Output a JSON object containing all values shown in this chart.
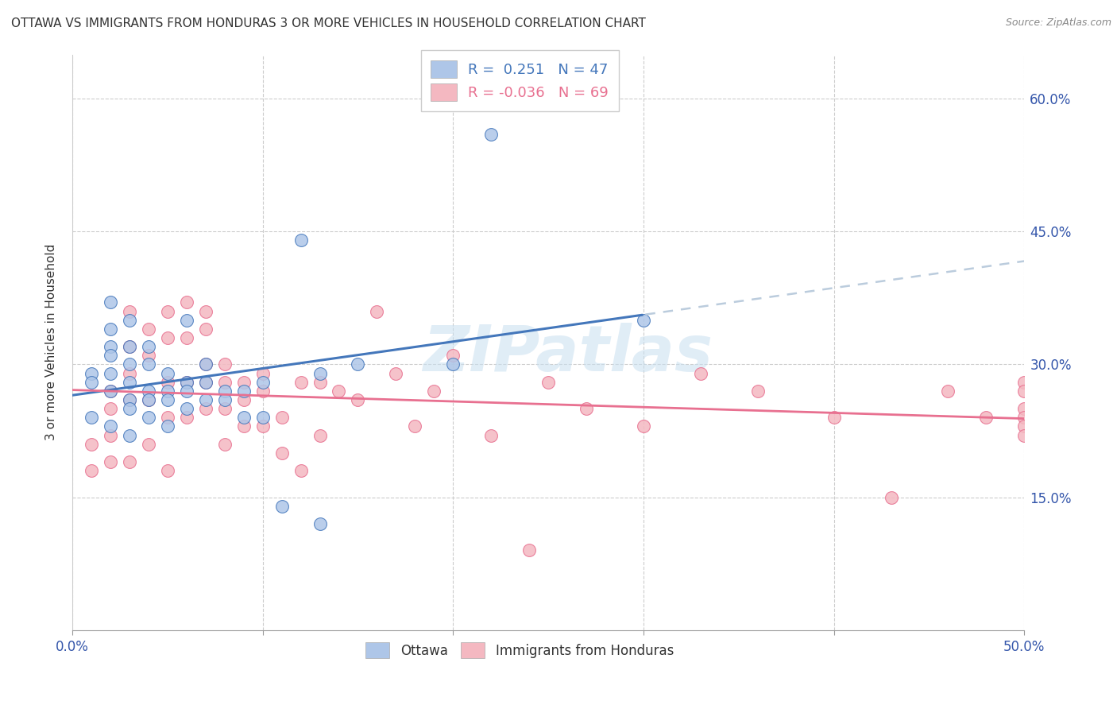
{
  "title": "OTTAWA VS IMMIGRANTS FROM HONDURAS 3 OR MORE VEHICLES IN HOUSEHOLD CORRELATION CHART",
  "source": "Source: ZipAtlas.com",
  "ylabel": "3 or more Vehicles in Household",
  "y_ticks": [
    "15.0%",
    "30.0%",
    "45.0%",
    "60.0%"
  ],
  "y_tick_vals": [
    0.15,
    0.3,
    0.45,
    0.6
  ],
  "x_lim": [
    0.0,
    0.5
  ],
  "y_lim": [
    0.0,
    0.65
  ],
  "ottawa_color": "#aec6e8",
  "honduras_color": "#f4b8c1",
  "ottawa_line_color": "#4477bb",
  "honduras_line_color": "#e87090",
  "trendline_extend_color": "#bbccdd",
  "watermark_text": "ZIPatlas",
  "ottawa_R": 0.251,
  "ottawa_N": 47,
  "honduras_R": -0.036,
  "honduras_N": 69,
  "ottawa_scatter_x": [
    0.01,
    0.01,
    0.01,
    0.02,
    0.02,
    0.02,
    0.02,
    0.02,
    0.02,
    0.02,
    0.03,
    0.03,
    0.03,
    0.03,
    0.03,
    0.03,
    0.03,
    0.04,
    0.04,
    0.04,
    0.04,
    0.04,
    0.05,
    0.05,
    0.05,
    0.05,
    0.06,
    0.06,
    0.06,
    0.06,
    0.07,
    0.07,
    0.07,
    0.08,
    0.08,
    0.09,
    0.09,
    0.1,
    0.1,
    0.11,
    0.12,
    0.13,
    0.13,
    0.15,
    0.2,
    0.22,
    0.3
  ],
  "ottawa_scatter_y": [
    0.29,
    0.28,
    0.24,
    0.37,
    0.34,
    0.32,
    0.31,
    0.29,
    0.27,
    0.23,
    0.35,
    0.32,
    0.3,
    0.28,
    0.26,
    0.25,
    0.22,
    0.32,
    0.3,
    0.27,
    0.26,
    0.24,
    0.29,
    0.27,
    0.26,
    0.23,
    0.35,
    0.28,
    0.27,
    0.25,
    0.3,
    0.28,
    0.26,
    0.27,
    0.26,
    0.27,
    0.24,
    0.28,
    0.24,
    0.14,
    0.44,
    0.29,
    0.12,
    0.3,
    0.3,
    0.56,
    0.35
  ],
  "honduras_scatter_x": [
    0.01,
    0.01,
    0.02,
    0.02,
    0.02,
    0.02,
    0.03,
    0.03,
    0.03,
    0.03,
    0.03,
    0.04,
    0.04,
    0.04,
    0.04,
    0.05,
    0.05,
    0.05,
    0.05,
    0.05,
    0.06,
    0.06,
    0.06,
    0.06,
    0.07,
    0.07,
    0.07,
    0.07,
    0.07,
    0.08,
    0.08,
    0.08,
    0.08,
    0.09,
    0.09,
    0.09,
    0.1,
    0.1,
    0.1,
    0.11,
    0.11,
    0.12,
    0.12,
    0.13,
    0.13,
    0.14,
    0.15,
    0.16,
    0.17,
    0.18,
    0.19,
    0.2,
    0.22,
    0.24,
    0.25,
    0.27,
    0.3,
    0.33,
    0.36,
    0.4,
    0.43,
    0.46,
    0.48,
    0.5,
    0.5,
    0.5,
    0.5,
    0.5,
    0.5
  ],
  "honduras_scatter_y": [
    0.21,
    0.18,
    0.27,
    0.25,
    0.22,
    0.19,
    0.36,
    0.32,
    0.29,
    0.26,
    0.19,
    0.34,
    0.31,
    0.26,
    0.21,
    0.36,
    0.33,
    0.28,
    0.24,
    0.18,
    0.37,
    0.33,
    0.28,
    0.24,
    0.36,
    0.34,
    0.3,
    0.28,
    0.25,
    0.3,
    0.28,
    0.25,
    0.21,
    0.28,
    0.26,
    0.23,
    0.29,
    0.27,
    0.23,
    0.24,
    0.2,
    0.28,
    0.18,
    0.28,
    0.22,
    0.27,
    0.26,
    0.36,
    0.29,
    0.23,
    0.27,
    0.31,
    0.22,
    0.09,
    0.28,
    0.25,
    0.23,
    0.29,
    0.27,
    0.24,
    0.15,
    0.27,
    0.24,
    0.28,
    0.27,
    0.25,
    0.24,
    0.23,
    0.22
  ]
}
